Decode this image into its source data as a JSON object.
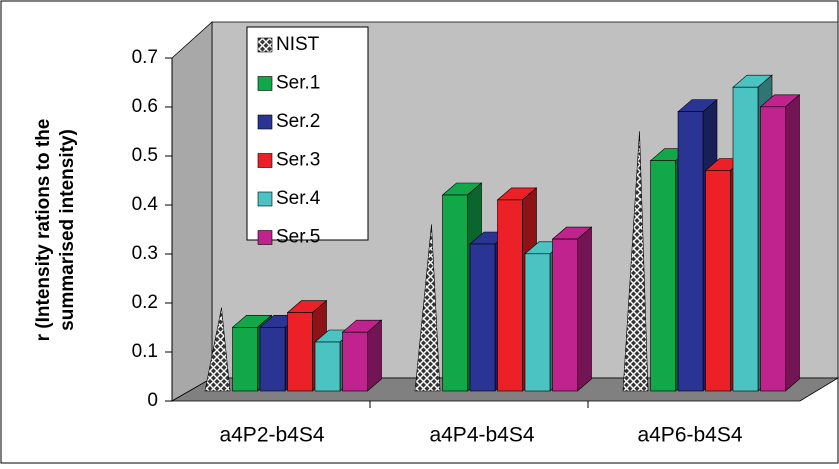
{
  "chart_data": {
    "type": "bar3d",
    "ylabel": [
      "r (Intensity rations to the",
      "summarised intensity)"
    ],
    "categories": [
      "a4P2-b4S4",
      "a4P4-b4S4",
      "a4P6-b4S4"
    ],
    "series": [
      {
        "name": "NIST",
        "color": "#333333",
        "shape": "cone",
        "values": [
          0.17,
          0.34,
          0.53
        ]
      },
      {
        "name": "Ser.1",
        "color": "#12a84a",
        "values": [
          0.13,
          0.4,
          0.47
        ]
      },
      {
        "name": "Ser.2",
        "color": "#2a3593",
        "values": [
          0.13,
          0.3,
          0.57
        ]
      },
      {
        "name": "Ser.3",
        "color": "#ec2027",
        "values": [
          0.16,
          0.39,
          0.45
        ]
      },
      {
        "name": "Ser.4",
        "color": "#4cc3c3",
        "values": [
          0.1,
          0.28,
          0.62
        ]
      },
      {
        "name": "Ser.5",
        "color": "#c0228e",
        "values": [
          0.12,
          0.31,
          0.58
        ]
      }
    ],
    "ylim": [
      0,
      0.7
    ],
    "yticks": [
      0,
      0.1,
      0.2,
      0.3,
      0.4,
      0.5,
      0.6,
      0.7
    ]
  }
}
